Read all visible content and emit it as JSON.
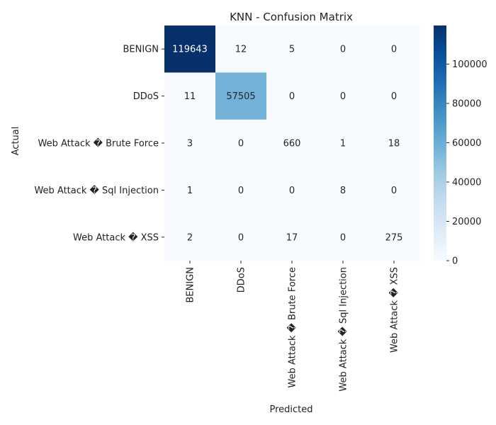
{
  "chart_data": {
    "type": "heatmap",
    "title": "KNN - Confusion Matrix",
    "xlabel": "Predicted",
    "ylabel": "Actual",
    "x_categories": [
      "BENIGN",
      "DDoS",
      "Web Attack � Brute Force",
      "Web Attack � Sql Injection",
      "Web Attack � XSS"
    ],
    "y_categories": [
      "BENIGN",
      "DDoS",
      "Web Attack � Brute Force",
      "Web Attack � Sql Injection",
      "Web Attack � XSS"
    ],
    "values": [
      [
        119643,
        12,
        5,
        0,
        0
      ],
      [
        11,
        57505,
        0,
        0,
        0
      ],
      [
        3,
        0,
        660,
        1,
        18
      ],
      [
        1,
        0,
        0,
        8,
        0
      ],
      [
        2,
        0,
        17,
        0,
        275
      ]
    ],
    "colormap": "Blues",
    "colors": {
      "low": "#f7fbff",
      "high": "#08306b"
    },
    "colorbar": {
      "min": 0,
      "max": 119643,
      "ticks": [
        0,
        20000,
        40000,
        60000,
        80000,
        100000
      ]
    }
  }
}
